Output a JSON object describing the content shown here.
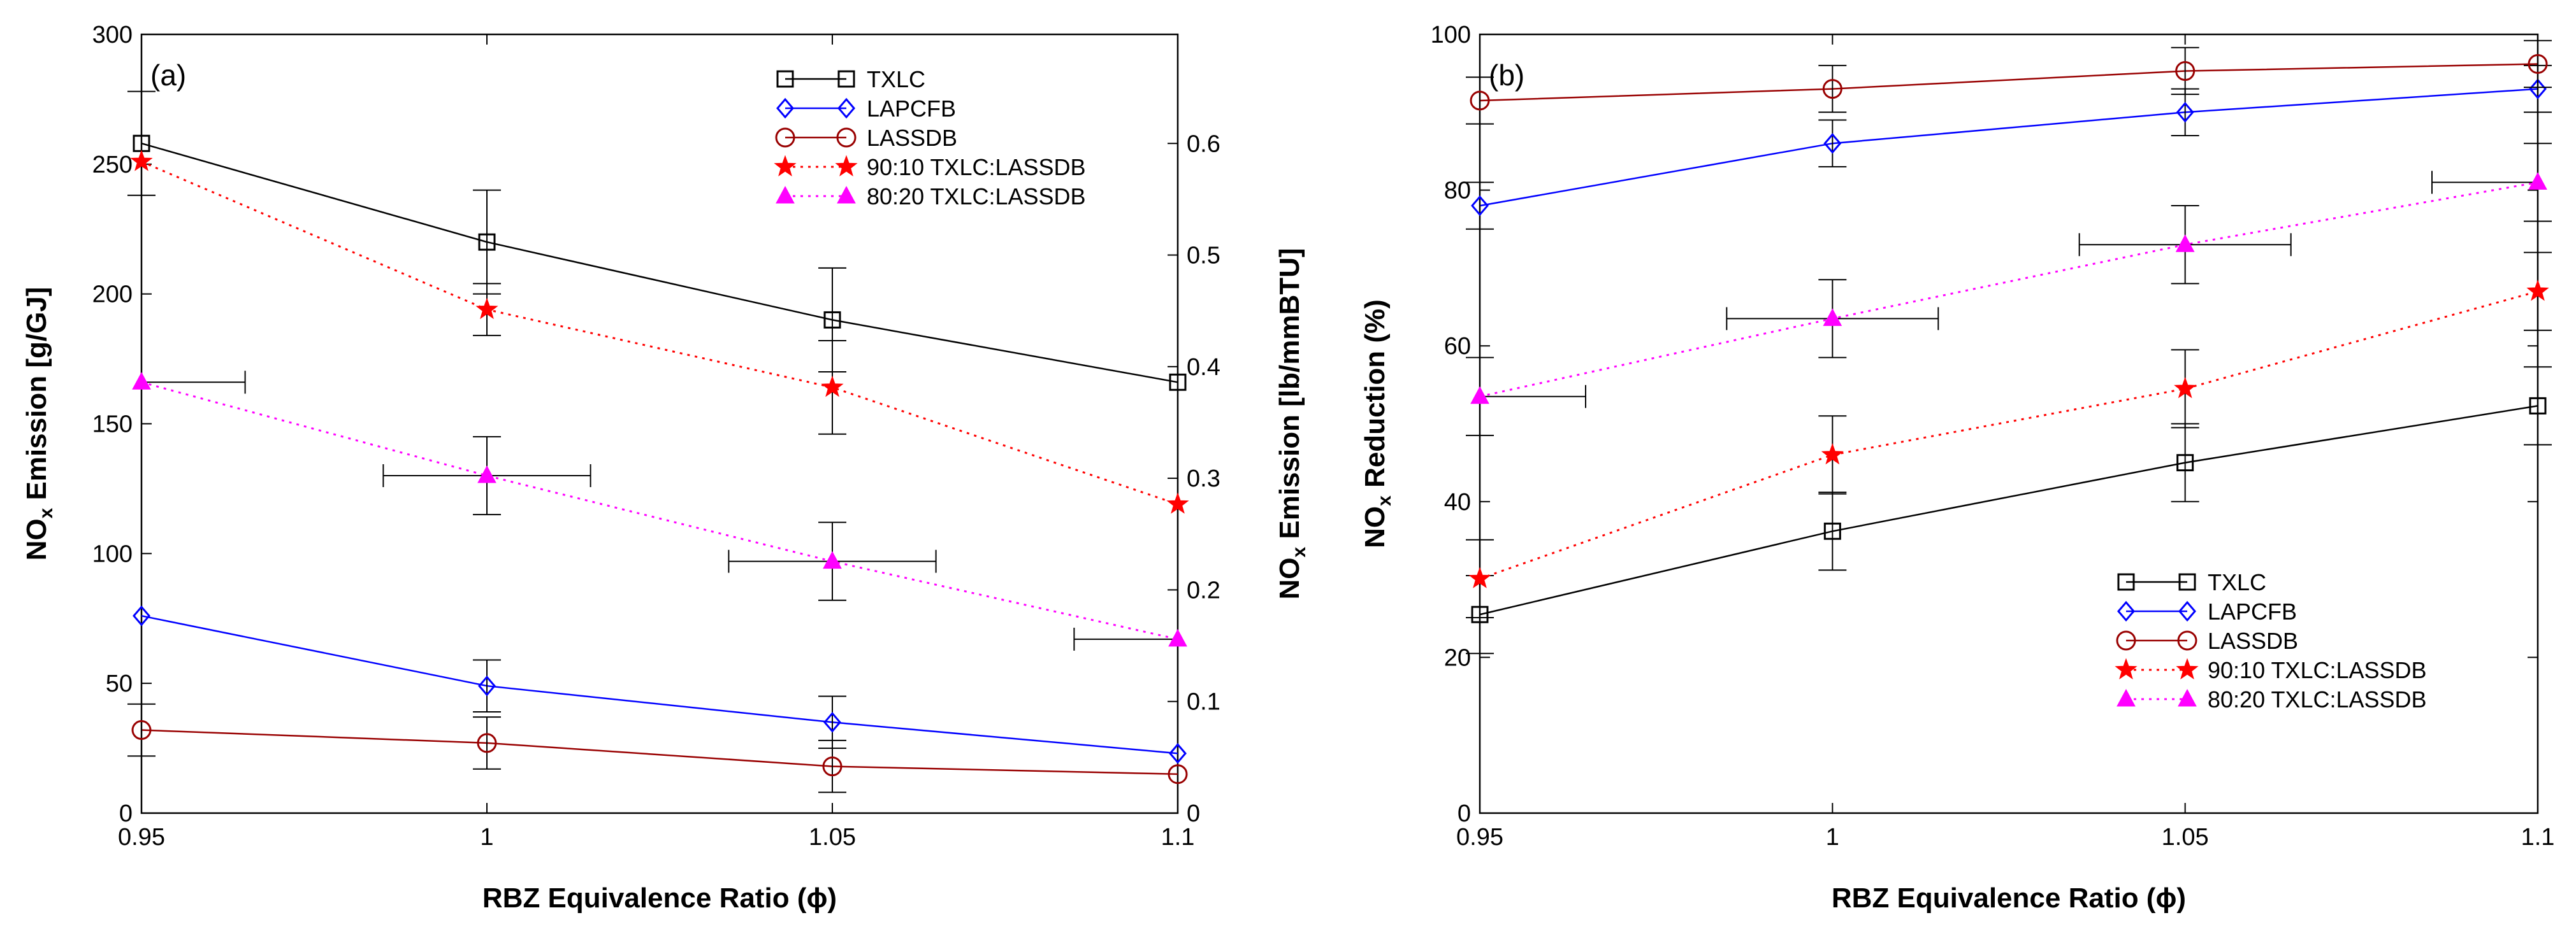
{
  "chart_data": [
    {
      "type": "line",
      "panel_label": "(a)",
      "xlabel": "RBZ Equivalence  Ratio (ϕ)",
      "ylabel": {
        "main": "NO",
        "sub": "x",
        "rest": " Emission [g/GJ]"
      },
      "y2label": {
        "main": "NO",
        "sub": "x",
        "rest": " Emission [lb/mmBTU]"
      },
      "x": [
        0.95,
        1,
        1.05,
        1.1
      ],
      "xticks": [
        "0.95",
        "1",
        "1.05",
        "1.1"
      ],
      "xlim": [
        0.95,
        1.1
      ],
      "ylim": [
        0,
        300
      ],
      "yticks": [
        "0",
        "50",
        "100",
        "150",
        "200",
        "250",
        "300"
      ],
      "y2lim": [
        0,
        0.6977
      ],
      "y2ticks": [
        "0",
        "0.1",
        "0.2",
        "0.3",
        "0.4",
        "0.5",
        "0.6"
      ],
      "legend_position": "top-right",
      "series": [
        {
          "name": "TXLC",
          "color": "#000000",
          "marker": "square",
          "dash": "solid",
          "values": [
            258,
            220,
            190,
            166
          ],
          "yerr": [
            20,
            20,
            20,
            0
          ]
        },
        {
          "name": "LAPCFB",
          "color": "#0000ff",
          "marker": "diamond",
          "dash": "solid",
          "values": [
            76,
            49,
            35,
            23
          ],
          "yerr": [
            0,
            10,
            10,
            0
          ]
        },
        {
          "name": "LASSDB",
          "color": "#990000",
          "marker": "circle",
          "dash": "solid",
          "values": [
            32,
            27,
            18,
            15
          ],
          "yerr": [
            10,
            10,
            10,
            0
          ]
        },
        {
          "name": "90:10 TXLC:LASSDB",
          "color": "#ff0000",
          "marker": "star",
          "dash": "dotted",
          "values": [
            251,
            194,
            164,
            119
          ],
          "yerr": [
            0,
            10,
            18,
            0
          ]
        },
        {
          "name": "80:20 TXLC:LASSDB",
          "color": "#ff00ff",
          "marker": "triangle",
          "dash": "dotted",
          "values": [
            166,
            130,
            97,
            67
          ],
          "yerr": [
            0,
            15,
            15,
            0
          ],
          "xerr": [
            0.015,
            0.015,
            0.015,
            0.015
          ]
        }
      ]
    },
    {
      "type": "line",
      "panel_label": "(b)",
      "xlabel": "RBZ Equivalence Ratio (ϕ)",
      "ylabel": {
        "main": "NO",
        "sub": "x",
        "rest": " Reduction (%)"
      },
      "x": [
        0.95,
        1,
        1.05,
        1.1
      ],
      "xticks": [
        "0.95",
        "1",
        "1.05",
        "1.1"
      ],
      "xlim": [
        0.95,
        1.1
      ],
      "ylim": [
        0,
        100
      ],
      "yticks": [
        "0",
        "20",
        "40",
        "60",
        "80",
        "100"
      ],
      "legend_position": "bottom-right",
      "series": [
        {
          "name": "TXLC",
          "color": "#000000",
          "marker": "square",
          "dash": "solid",
          "values": [
            25.5,
            36.2,
            45,
            52.3
          ],
          "yerr": [
            5,
            5,
            5,
            5
          ]
        },
        {
          "name": "LAPCFB",
          "color": "#0000ff",
          "marker": "diamond",
          "dash": "solid",
          "values": [
            78,
            86,
            90,
            93
          ],
          "yerr": [
            3,
            3,
            3,
            3
          ]
        },
        {
          "name": "LASSDB",
          "color": "#990000",
          "marker": "circle",
          "dash": "solid",
          "values": [
            91.5,
            93,
            95.3,
            96.2
          ],
          "yerr": [
            3,
            3,
            3,
            3
          ]
        },
        {
          "name": "90:10 TXLC:LASSDB",
          "color": "#ff0000",
          "marker": "star",
          "dash": "dotted",
          "values": [
            30.1,
            46,
            54.5,
            67
          ],
          "yerr": [
            5,
            5,
            5,
            5
          ]
        },
        {
          "name": "80:20 TXLC:LASSDB",
          "color": "#ff00ff",
          "marker": "triangle",
          "dash": "dotted",
          "values": [
            53.5,
            63.5,
            73,
            81
          ],
          "yerr": [
            5,
            5,
            5,
            5
          ],
          "xerr": [
            0.015,
            0.015,
            0.015,
            0.015
          ]
        }
      ]
    }
  ]
}
